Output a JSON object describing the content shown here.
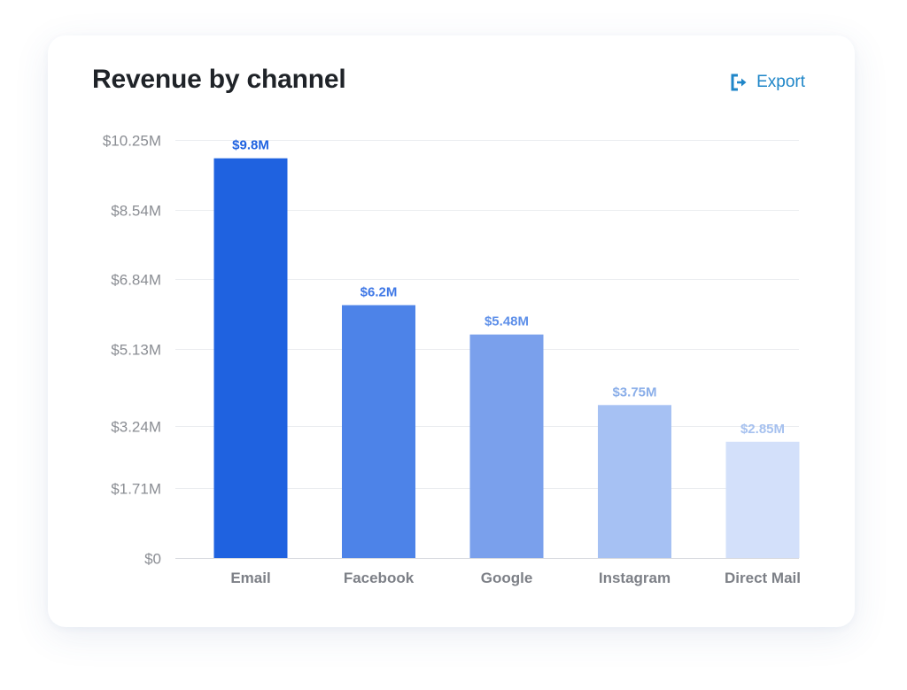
{
  "card": {
    "title": "Revenue by channel",
    "export_label": "Export"
  },
  "colors": {
    "accent": "#1f86c8",
    "bars": [
      "#1f62e0",
      "#4d83e8",
      "#7aa0ec",
      "#a6c1f3",
      "#d3e0fa"
    ],
    "value_labels": [
      "#1f62e0",
      "#3e77e6",
      "#5d8fe9",
      "#8aaee9",
      "#a6c1ef"
    ]
  },
  "chart_data": {
    "type": "bar",
    "title": "Revenue by channel",
    "xlabel": "",
    "ylabel": "",
    "categories": [
      "Email",
      "Facebook",
      "Google",
      "Instagram",
      "Direct Mail"
    ],
    "values": [
      9.8,
      6.2,
      5.48,
      3.75,
      2.85
    ],
    "value_labels": [
      "$9.8M",
      "$6.2M",
      "$5.48M",
      "$3.75M",
      "$2.85M"
    ],
    "y_ticks": [
      0,
      1.71,
      3.24,
      5.13,
      6.84,
      8.54,
      10.25
    ],
    "y_tick_labels": [
      "$0",
      "$1.71M",
      "$3.24M",
      "$5.13M",
      "$6.84M",
      "$8.54M",
      "$10.25M"
    ],
    "ylim": [
      0,
      10.25
    ],
    "grid": true,
    "legend": "none"
  }
}
